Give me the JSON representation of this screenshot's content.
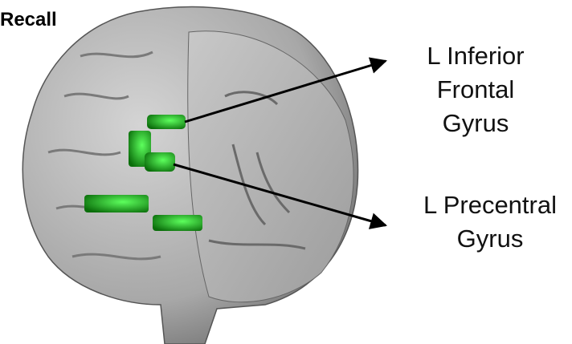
{
  "title": "Recall",
  "labels": [
    {
      "lines": [
        "L Inferior",
        "Frontal",
        "Gyrus"
      ]
    },
    {
      "lines": [
        "L Precentral",
        "Gyrus"
      ]
    }
  ]
}
